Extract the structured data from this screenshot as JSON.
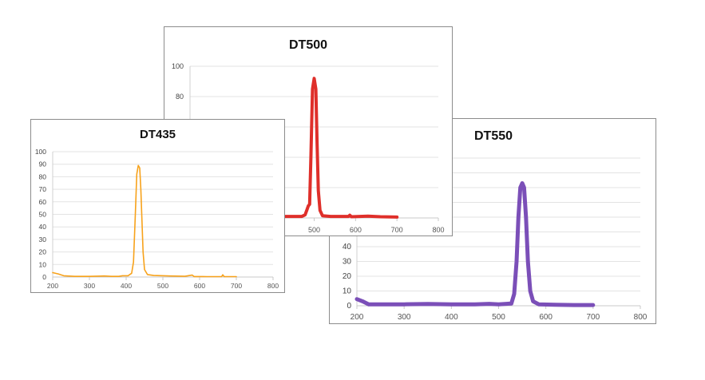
{
  "chart_data": [
    {
      "id": "dt550",
      "type": "line",
      "title": "DT550",
      "xlim": [
        200,
        800
      ],
      "ylim": [
        0,
        100
      ],
      "xticks": [
        200,
        300,
        400,
        500,
        600,
        700,
        800
      ],
      "yticks": [
        0,
        10,
        20,
        30,
        40,
        50,
        60,
        70,
        80,
        90,
        100
      ],
      "yticklabels_shown": [
        0,
        10,
        20,
        30,
        40
      ],
      "grid": true,
      "color": "#7B4FB8",
      "series": [
        {
          "name": "DT550",
          "points": [
            [
              200,
              4.5
            ],
            [
              212,
              3
            ],
            [
              225,
              1
            ],
            [
              260,
              1
            ],
            [
              300,
              1
            ],
            [
              350,
              1.2
            ],
            [
              400,
              1
            ],
            [
              450,
              1
            ],
            [
              480,
              1.3
            ],
            [
              500,
              1
            ],
            [
              527,
              1.5
            ],
            [
              533,
              8
            ],
            [
              538,
              30
            ],
            [
              542,
              60
            ],
            [
              546,
              80
            ],
            [
              550,
              83
            ],
            [
              554,
              80
            ],
            [
              558,
              60
            ],
            [
              562,
              30
            ],
            [
              567,
              10
            ],
            [
              573,
              3
            ],
            [
              585,
              1
            ],
            [
              620,
              0.7
            ],
            [
              660,
              0.5
            ],
            [
              700,
              0.5
            ]
          ]
        }
      ]
    },
    {
      "id": "dt500",
      "type": "line",
      "title": "DT500",
      "xlim": [
        200,
        800
      ],
      "ylim": [
        0,
        100
      ],
      "xticks": [
        200,
        300,
        400,
        500,
        600,
        700,
        800
      ],
      "yticks": [
        0,
        20,
        40,
        60,
        80,
        100
      ],
      "grid": true,
      "color": "#DF2F2A",
      "series": [
        {
          "name": "DT500",
          "points": [
            [
              200,
              1
            ],
            [
              300,
              1
            ],
            [
              400,
              1
            ],
            [
              470,
              1
            ],
            [
              478,
              2
            ],
            [
              482,
              5
            ],
            [
              486,
              8
            ],
            [
              489,
              9
            ],
            [
              492,
              40
            ],
            [
              496,
              85
            ],
            [
              500,
              92
            ],
            [
              504,
              85
            ],
            [
              507,
              50
            ],
            [
              510,
              18
            ],
            [
              514,
              5
            ],
            [
              520,
              1.5
            ],
            [
              540,
              1
            ],
            [
              583,
              1
            ],
            [
              586,
              1.8
            ],
            [
              590,
              0.8
            ],
            [
              630,
              1.2
            ],
            [
              660,
              0.8
            ],
            [
              700,
              0.6
            ]
          ]
        }
      ]
    },
    {
      "id": "dt435",
      "type": "line",
      "title": "DT435",
      "xlim": [
        200,
        800
      ],
      "ylim": [
        0,
        100
      ],
      "xticks": [
        200,
        300,
        400,
        500,
        600,
        700,
        800
      ],
      "yticks": [
        0,
        10,
        20,
        30,
        40,
        50,
        60,
        70,
        80,
        90,
        100
      ],
      "grid": true,
      "color": "#F7A21B",
      "series": [
        {
          "name": "DT435",
          "points": [
            [
              200,
              3.5
            ],
            [
              215,
              2.5
            ],
            [
              230,
              1
            ],
            [
              260,
              0.5
            ],
            [
              300,
              0.5
            ],
            [
              340,
              0.8
            ],
            [
              360,
              0.5
            ],
            [
              380,
              0.5
            ],
            [
              390,
              1
            ],
            [
              405,
              1
            ],
            [
              415,
              3
            ],
            [
              420,
              12
            ],
            [
              425,
              50
            ],
            [
              429,
              82
            ],
            [
              433,
              89
            ],
            [
              437,
              87
            ],
            [
              440,
              70
            ],
            [
              443,
              45
            ],
            [
              446,
              20
            ],
            [
              450,
              6
            ],
            [
              458,
              2
            ],
            [
              475,
              1.2
            ],
            [
              520,
              0.8
            ],
            [
              560,
              0.6
            ],
            [
              580,
              1.5
            ],
            [
              585,
              0.4
            ],
            [
              620,
              0.3
            ],
            [
              660,
              0.3
            ],
            [
              663,
              1.8
            ],
            [
              667,
              0.3
            ],
            [
              700,
              0.3
            ]
          ]
        }
      ]
    }
  ]
}
